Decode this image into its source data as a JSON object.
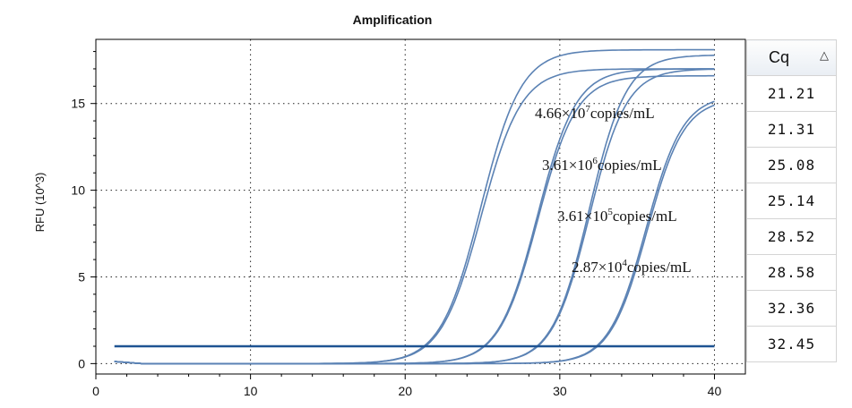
{
  "chart_data": {
    "type": "line",
    "title": "Amplification",
    "xlabel": "",
    "ylabel": "RFU (10^3)",
    "xlim": [
      0,
      42
    ],
    "ylim": [
      -0.6,
      18.7
    ],
    "x_ticks": [
      0,
      10,
      20,
      30,
      40
    ],
    "y_ticks": [
      0,
      5,
      10,
      15
    ],
    "grid": "dotted",
    "threshold": 1.0,
    "series": [
      {
        "cq": 21.21,
        "plateau": 18.1,
        "slope": 1.3
      },
      {
        "cq": 21.31,
        "plateau": 17.0,
        "slope": 1.3
      },
      {
        "cq": 25.08,
        "plateau": 17.0,
        "slope": 1.25
      },
      {
        "cq": 25.14,
        "plateau": 16.6,
        "slope": 1.25
      },
      {
        "cq": 28.52,
        "plateau": 17.8,
        "slope": 1.2
      },
      {
        "cq": 28.58,
        "plateau": 17.0,
        "slope": 1.2
      },
      {
        "cq": 32.36,
        "plateau": 15.5,
        "slope": 1.2
      },
      {
        "cq": 32.45,
        "plateau": 15.3,
        "slope": 1.2
      }
    ],
    "annotations": [
      {
        "mantissa": "4.66×10",
        "exp": "7",
        "unit": "copies/mL"
      },
      {
        "mantissa": "3.61×10",
        "exp": "6",
        "unit": "copies/mL"
      },
      {
        "mantissa": "3.61×10",
        "exp": "5",
        "unit": "copies/mL"
      },
      {
        "mantissa": "2.87×10",
        "exp": "4",
        "unit": "copies/mL"
      }
    ],
    "colors": {
      "curve": "#5b82b4",
      "threshold": "#1f5493",
      "axis": "#000000",
      "grid": "#222222"
    }
  },
  "cq_table": {
    "header": "Cq",
    "sort_icon": "triangle-up-icon",
    "values": [
      "21.21",
      "21.31",
      "25.08",
      "25.14",
      "28.52",
      "28.58",
      "32.36",
      "32.45"
    ]
  }
}
